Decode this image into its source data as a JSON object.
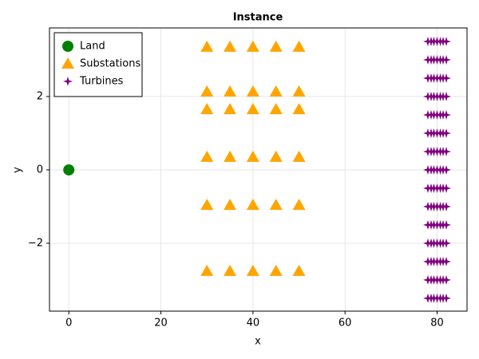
{
  "chart_data": {
    "type": "scatter",
    "title": "Instance",
    "x_label": "x",
    "y_label": "y",
    "xlim": [
      -4.2,
      86.5
    ],
    "ylim": [
      -3.85,
      3.87
    ],
    "xticks": [
      0,
      20,
      40,
      60,
      80
    ],
    "yticks": [
      {
        "value": -2,
        "label": "−2"
      },
      0,
      2
    ],
    "grid": true,
    "legend": "top-left",
    "series": [
      {
        "name": "Land",
        "color": "#008000",
        "marker": "circle",
        "x": [
          0
        ],
        "values": [
          0
        ]
      },
      {
        "name": "Substations",
        "color": "#ffa500",
        "marker": "triangle",
        "x": [
          30,
          35,
          40,
          45,
          50,
          30,
          35,
          40,
          45,
          50,
          30,
          35,
          40,
          45,
          50,
          30,
          35,
          40,
          45,
          50,
          30,
          35,
          40,
          45,
          50,
          30,
          35,
          40,
          45,
          50
        ],
        "values": [
          3.35,
          3.35,
          3.35,
          3.35,
          3.35,
          2.13,
          2.13,
          2.13,
          2.13,
          2.13,
          1.65,
          1.65,
          1.65,
          1.65,
          1.65,
          0.35,
          0.35,
          0.35,
          0.35,
          0.35,
          -0.96,
          -0.96,
          -0.96,
          -0.96,
          -0.96,
          -2.76,
          -2.76,
          -2.76,
          -2.76,
          -2.76
        ]
      },
      {
        "name": "Turbines",
        "color": "#800080",
        "marker": "star",
        "x": [
          78,
          78.7,
          79.3,
          80,
          80.7,
          81.3,
          82,
          78,
          78.7,
          79.3,
          80,
          80.7,
          81.3,
          82,
          78,
          78.7,
          79.3,
          80,
          80.7,
          81.3,
          82,
          78,
          78.7,
          79.3,
          80,
          80.7,
          81.3,
          82,
          78,
          78.7,
          79.3,
          80,
          80.7,
          81.3,
          82,
          78,
          78.7,
          79.3,
          80,
          80.7,
          81.3,
          82,
          78,
          78.7,
          79.3,
          80,
          80.7,
          81.3,
          82,
          78,
          78.7,
          79.3,
          80,
          80.7,
          81.3,
          82,
          78,
          78.7,
          79.3,
          80,
          80.7,
          81.3,
          82,
          78,
          78.7,
          79.3,
          80,
          80.7,
          81.3,
          82,
          78,
          78.7,
          79.3,
          80,
          80.7,
          81.3,
          82,
          78,
          78.7,
          79.3,
          80,
          80.7,
          81.3,
          82,
          78,
          78.7,
          79.3,
          80,
          80.7,
          81.3,
          82,
          78,
          78.7,
          79.3,
          80,
          80.7,
          81.3,
          82,
          78,
          78.7,
          79.3,
          80,
          80.7,
          81.3,
          82
        ],
        "values": [
          3.5,
          3.5,
          3.5,
          3.5,
          3.5,
          3.5,
          3.5,
          3,
          3,
          3,
          3,
          3,
          3,
          3,
          2.5,
          2.5,
          2.5,
          2.5,
          2.5,
          2.5,
          2.5,
          2,
          2,
          2,
          2,
          2,
          2,
          2,
          1.5,
          1.5,
          1.5,
          1.5,
          1.5,
          1.5,
          1.5,
          1,
          1,
          1,
          1,
          1,
          1,
          1,
          0.5,
          0.5,
          0.5,
          0.5,
          0.5,
          0.5,
          0.5,
          0,
          0,
          0,
          0,
          0,
          0,
          0,
          -0.5,
          -0.5,
          -0.5,
          -0.5,
          -0.5,
          -0.5,
          -0.5,
          -1,
          -1,
          -1,
          -1,
          -1,
          -1,
          -1,
          -1.5,
          -1.5,
          -1.5,
          -1.5,
          -1.5,
          -1.5,
          -1.5,
          -2,
          -2,
          -2,
          -2,
          -2,
          -2,
          -2,
          -2.5,
          -2.5,
          -2.5,
          -2.5,
          -2.5,
          -2.5,
          -2.5,
          -3,
          -3,
          -3,
          -3,
          -3,
          -3,
          -3,
          -3.5,
          -3.5,
          -3.5,
          -3.5,
          -3.5,
          -3.5,
          -3.5
        ]
      }
    ]
  }
}
